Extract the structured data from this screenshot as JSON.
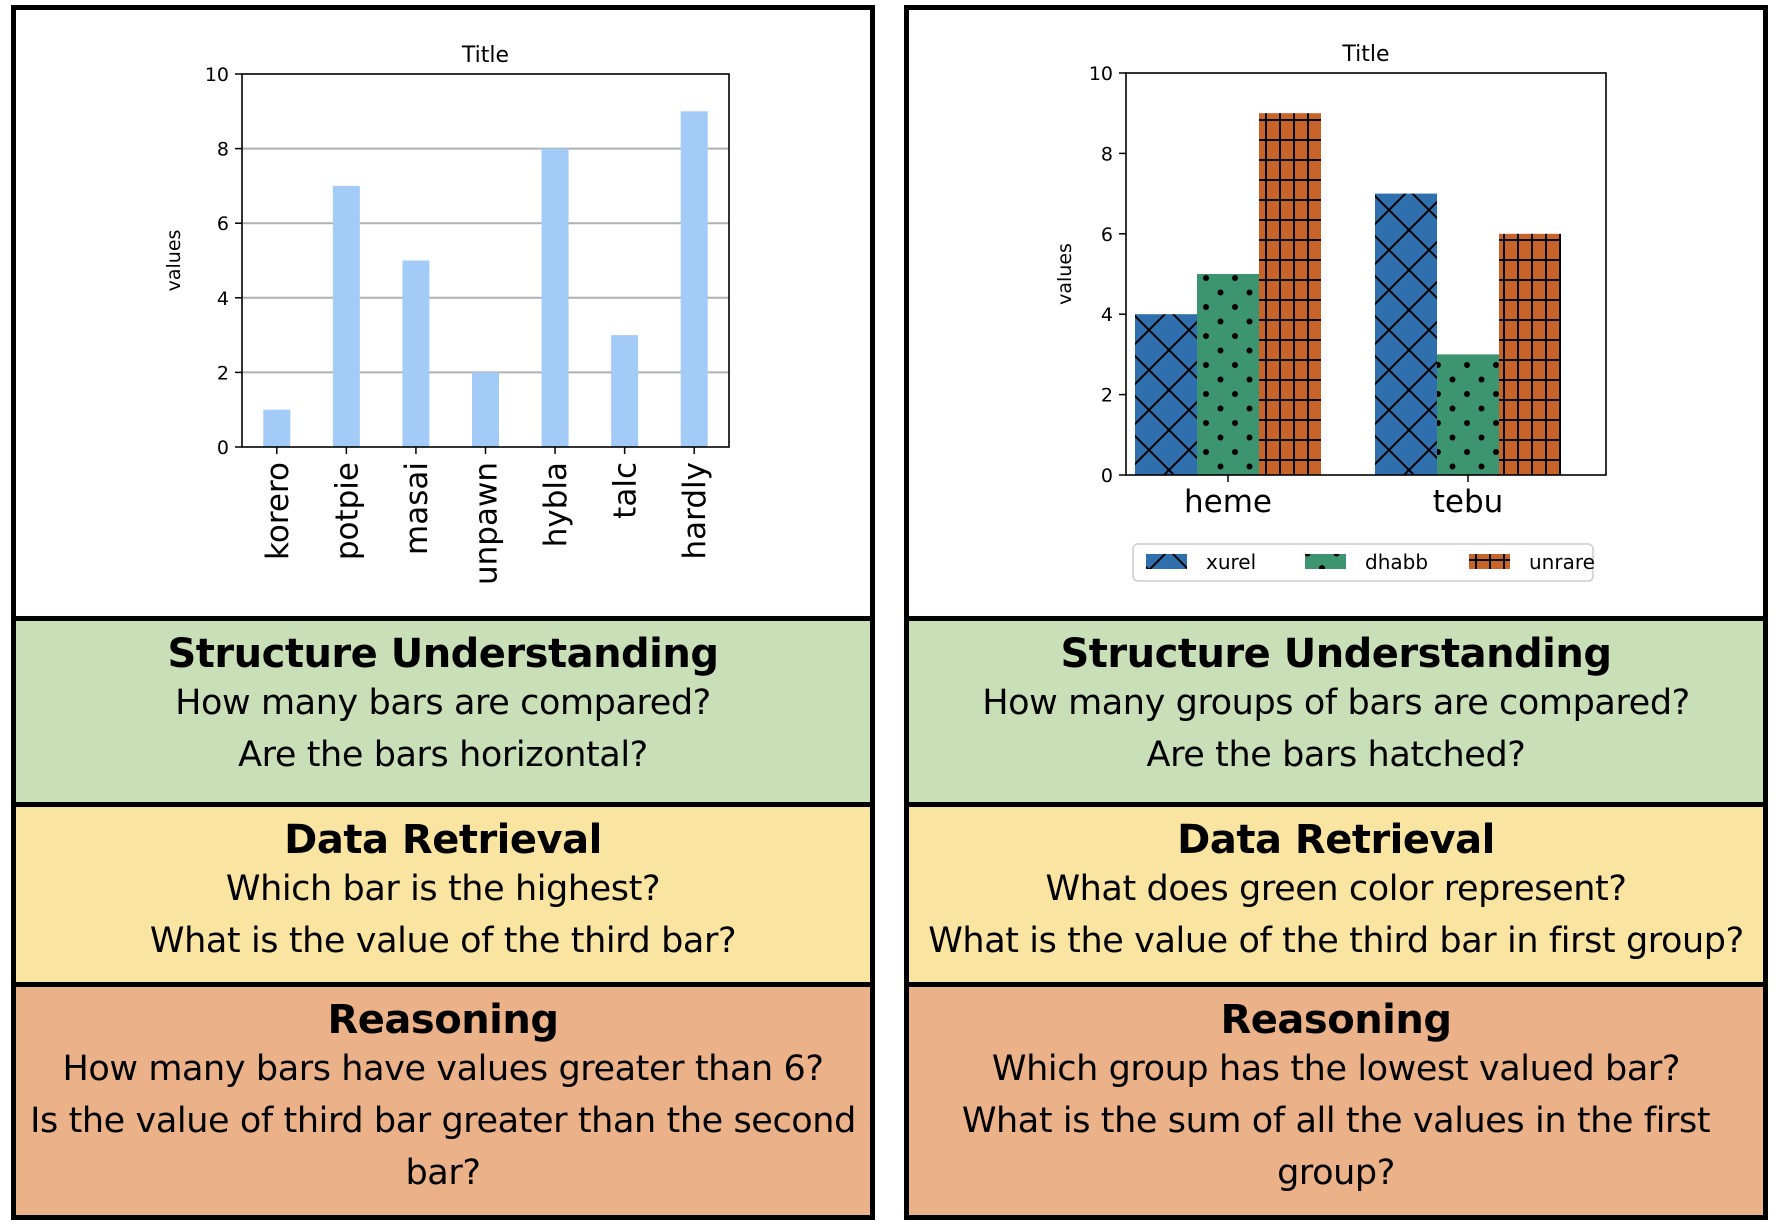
{
  "panels": [
    {
      "chart_data": {
        "type": "bar",
        "title": "Title",
        "xlabel": "",
        "ylabel": "values",
        "categories": [
          "korero",
          "potpie",
          "masai",
          "unpawn",
          "hybla",
          "talc",
          "hardly"
        ],
        "values": [
          1,
          7,
          5,
          2,
          8,
          3,
          9
        ],
        "ylim": [
          0,
          10
        ],
        "yticks": [
          "0",
          "2",
          "4",
          "6",
          "8",
          "10"
        ],
        "grid": "horizontal",
        "color": "#a3cbf8",
        "orientation": "vertical"
      },
      "sections": {
        "structure": {
          "title": "Structure Understanding",
          "lines": [
            "How many bars are compared?",
            "Are the bars horizontal?"
          ]
        },
        "retrieval": {
          "title": "Data Retrieval",
          "lines": [
            "Which bar is the highest?",
            "What is the value of the third bar?"
          ]
        },
        "reasoning": {
          "title": "Reasoning",
          "lines": [
            "How many bars have values greater than 6?",
            "Is the value of third bar greater than the second",
            "bar?"
          ]
        }
      }
    },
    {
      "chart_data": {
        "type": "bar",
        "title": "Title",
        "xlabel": "",
        "ylabel": "values",
        "categories": [
          "heme",
          "tebu"
        ],
        "series": [
          {
            "name": "xurel",
            "values": [
              4,
              7
            ],
            "color": "#2f6fad",
            "hatch": "cross-diagonal"
          },
          {
            "name": "dhabb",
            "values": [
              5,
              3
            ],
            "color": "#3d9470",
            "hatch": "dots"
          },
          {
            "name": "unrare",
            "values": [
              9,
              6
            ],
            "color": "#c8642a",
            "hatch": "grid"
          }
        ],
        "ylim": [
          0,
          10
        ],
        "yticks": [
          "0",
          "2",
          "4",
          "6",
          "8",
          "10"
        ],
        "grid": false,
        "legend": "bottom"
      },
      "sections": {
        "structure": {
          "title": "Structure Understanding",
          "lines": [
            "How many groups of bars are compared?",
            "Are the bars hatched?"
          ]
        },
        "retrieval": {
          "title": "Data Retrieval",
          "lines": [
            "What does green color represent?",
            "What is the value of the third bar in first group?"
          ]
        },
        "reasoning": {
          "title": "Reasoning",
          "lines": [
            "Which group has the lowest valued bar?",
            "What is the sum of all the values in the first",
            "group?"
          ]
        }
      }
    }
  ]
}
